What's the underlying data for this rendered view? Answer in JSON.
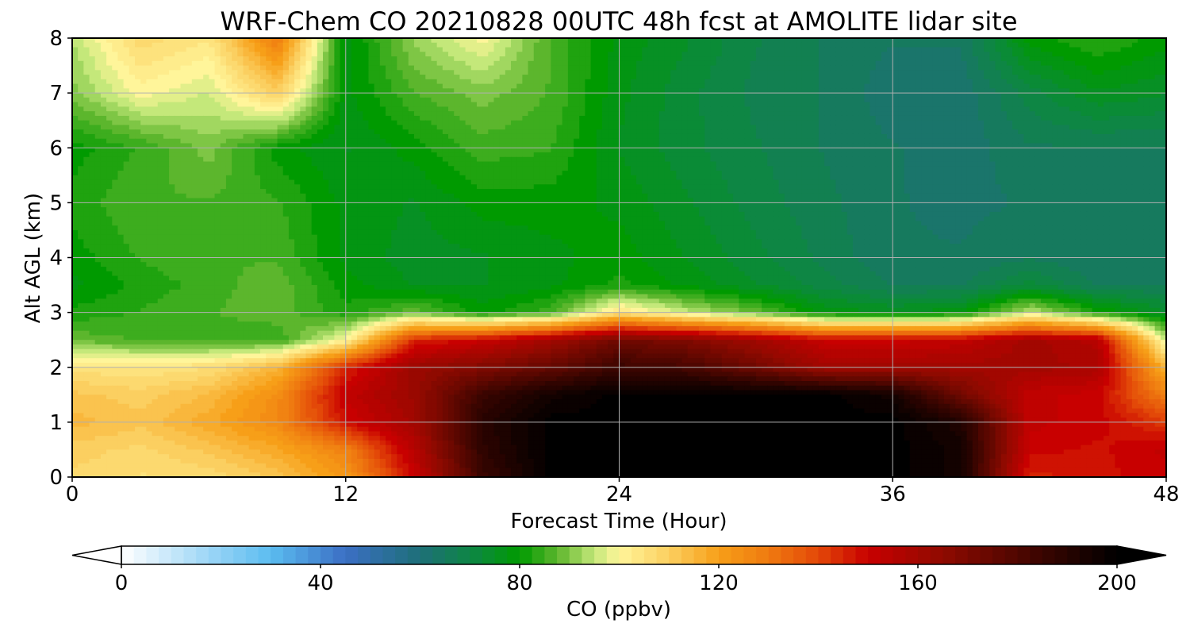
{
  "chart_data": {
    "type": "heatmap",
    "title": "WRF-Chem CO  20210828 00UTC 48h fcst at AMOLITE lidar site",
    "xlabel": "Forecast Time (Hour)",
    "ylabel": "Alt AGL (km)",
    "xlim": [
      0,
      48
    ],
    "ylim": [
      0,
      8
    ],
    "x_ticks": [
      "0",
      "12",
      "24",
      "36",
      "48"
    ],
    "y_ticks": [
      "0",
      "1",
      "2",
      "3",
      "4",
      "5",
      "6",
      "7",
      "8"
    ],
    "grid": true,
    "x": [
      0,
      3,
      6,
      9,
      12,
      15,
      18,
      21,
      24,
      27,
      30,
      33,
      36,
      39,
      42,
      45,
      48
    ],
    "y": [
      0,
      0.5,
      1,
      1.5,
      2,
      2.5,
      3,
      3.5,
      4,
      5,
      6,
      7,
      8
    ],
    "z": [
      [
        108,
        106,
        107,
        112,
        122,
        150,
        185,
        200,
        200,
        200,
        200,
        200,
        200,
        195,
        145,
        148,
        150
      ],
      [
        110,
        108,
        112,
        118,
        128,
        155,
        188,
        200,
        200,
        200,
        200,
        200,
        200,
        195,
        150,
        148,
        152
      ],
      [
        115,
        112,
        118,
        126,
        148,
        160,
        190,
        200,
        200,
        200,
        200,
        200,
        200,
        192,
        152,
        150,
        142
      ],
      [
        112,
        110,
        114,
        125,
        152,
        162,
        185,
        195,
        200,
        200,
        200,
        200,
        195,
        172,
        152,
        150,
        128
      ],
      [
        105,
        104,
        106,
        115,
        145,
        162,
        168,
        175,
        185,
        182,
        172,
        160,
        160,
        160,
        160,
        158,
        115
      ],
      [
        88,
        86,
        85,
        84,
        100,
        145,
        150,
        160,
        172,
        168,
        160,
        150,
        150,
        152,
        160,
        155,
        95
      ],
      [
        82,
        84,
        86,
        88,
        82,
        88,
        80,
        85,
        105,
        95,
        88,
        78,
        76,
        78,
        95,
        82,
        74
      ],
      [
        78,
        82,
        85,
        88,
        80,
        76,
        76,
        78,
        82,
        78,
        74,
        70,
        66,
        66,
        72,
        66,
        66
      ],
      [
        80,
        84,
        86,
        86,
        78,
        75,
        76,
        78,
        80,
        76,
        72,
        68,
        64,
        64,
        66,
        64,
        64
      ],
      [
        82,
        86,
        86,
        84,
        78,
        76,
        80,
        80,
        78,
        74,
        70,
        67,
        64,
        63,
        64,
        64,
        64
      ],
      [
        80,
        84,
        90,
        80,
        76,
        80,
        85,
        84,
        76,
        72,
        69,
        66,
        64,
        62,
        66,
        66,
        66
      ],
      [
        90,
        100,
        96,
        110,
        78,
        86,
        90,
        86,
        77,
        72,
        68,
        66,
        62,
        62,
        70,
        76,
        74
      ],
      [
        94,
        108,
        104,
        130,
        77,
        92,
        100,
        86,
        78,
        74,
        69,
        66,
        64,
        64,
        80,
        84,
        80
      ]
    ],
    "colorbar": {
      "label": "CO  (ppbv)",
      "min": 0,
      "max": 200,
      "ticks": [
        "0",
        "40",
        "80",
        "120",
        "160",
        "200"
      ],
      "extend": "both",
      "colors": [
        {
          "value": 0,
          "color": "#ffffff"
        },
        {
          "value": 20,
          "color": "#8fd0f5"
        },
        {
          "value": 30,
          "color": "#5bbcf0"
        },
        {
          "value": 45,
          "color": "#3b6fc4"
        },
        {
          "value": 60,
          "color": "#1e6f78"
        },
        {
          "value": 72,
          "color": "#0b8a3a"
        },
        {
          "value": 80,
          "color": "#009a00"
        },
        {
          "value": 88,
          "color": "#62b830"
        },
        {
          "value": 95,
          "color": "#c4e87a"
        },
        {
          "value": 100,
          "color": "#fff59a"
        },
        {
          "value": 110,
          "color": "#fbcf60"
        },
        {
          "value": 120,
          "color": "#f79f18"
        },
        {
          "value": 130,
          "color": "#ef7a10"
        },
        {
          "value": 140,
          "color": "#e34808"
        },
        {
          "value": 150,
          "color": "#c80000"
        },
        {
          "value": 165,
          "color": "#8f0a00"
        },
        {
          "value": 185,
          "color": "#3a0500"
        },
        {
          "value": 200,
          "color": "#000000"
        }
      ]
    }
  }
}
